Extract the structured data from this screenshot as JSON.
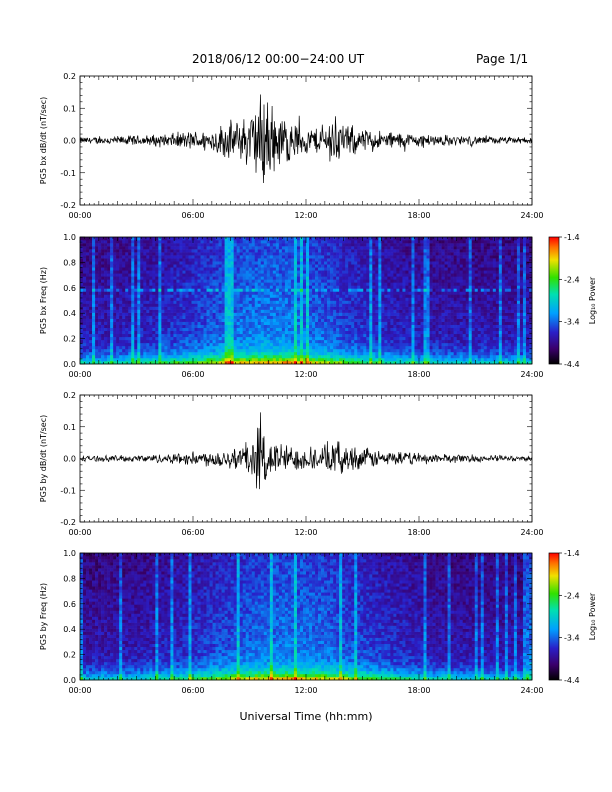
{
  "header": {
    "title": "2018/06/12  00:00−24:00 UT",
    "page_label": "Page 1/1"
  },
  "x_axis_title": "Universal Time (hh:mm)",
  "colorbar": {
    "label": "Log₁₀ Power",
    "ticks": [
      "-1.4",
      "-2.4",
      "-3.4",
      "-4.4"
    ]
  },
  "chart_data": [
    {
      "type": "line",
      "ylabel": "PG5 bx dB/dt (nT/sec)",
      "ylim": [
        -0.2,
        0.2
      ],
      "yticks": [
        -0.2,
        -0.1,
        0.0,
        0.1,
        0.2
      ],
      "ytick_labels": [
        "-0.2",
        "-0.1",
        "0.0",
        "0.1",
        "0.2"
      ],
      "xlim": [
        "00:00",
        "24:00"
      ],
      "xticks": [
        "00:00",
        "06:00",
        "12:00",
        "18:00",
        "24:00"
      ],
      "envelope": {
        "hours": [
          0,
          1,
          2,
          3,
          4,
          5,
          6,
          7,
          7.5,
          8,
          8.5,
          9,
          9.5,
          9.8,
          10,
          10.5,
          11,
          12,
          13,
          13.5,
          14,
          15,
          16,
          17,
          18,
          19,
          20,
          21,
          22,
          23,
          24
        ],
        "amplitude": [
          0.012,
          0.014,
          0.016,
          0.018,
          0.022,
          0.028,
          0.035,
          0.04,
          0.06,
          0.07,
          0.08,
          0.1,
          0.16,
          0.2,
          0.16,
          0.11,
          0.08,
          0.05,
          0.05,
          0.1,
          0.06,
          0.045,
          0.035,
          0.03,
          0.025,
          0.022,
          0.018,
          0.016,
          0.014,
          0.012,
          0.012
        ]
      }
    },
    {
      "type": "heatmap",
      "ylabel": "PG5 bx Freq (Hz)",
      "ylim": [
        0.0,
        1.0
      ],
      "yticks": [
        0.0,
        0.2,
        0.4,
        0.6,
        0.8,
        1.0
      ],
      "ytick_labels": [
        "0.0",
        "0.2",
        "0.4",
        "0.6",
        "0.8",
        "1.0"
      ],
      "xlim": [
        "00:00",
        "24:00"
      ],
      "xticks": [
        "00:00",
        "06:00",
        "12:00",
        "18:00",
        "24:00"
      ],
      "color_range": [
        -4.4,
        -1.4
      ]
    },
    {
      "type": "line",
      "ylabel": "PG5 by dB/dt (nT/sec)",
      "ylim": [
        -0.2,
        0.2
      ],
      "yticks": [
        -0.2,
        -0.1,
        0.0,
        0.1,
        0.2
      ],
      "ytick_labels": [
        "-0.2",
        "-0.1",
        "0.0",
        "0.1",
        "0.2"
      ],
      "xlim": [
        "00:00",
        "24:00"
      ],
      "xticks": [
        "00:00",
        "06:00",
        "12:00",
        "18:00",
        "24:00"
      ],
      "envelope": {
        "hours": [
          0,
          1,
          2,
          3,
          4,
          5,
          6,
          7,
          8,
          9,
          9.5,
          10,
          11,
          12,
          13,
          13.5,
          14,
          15,
          16,
          17,
          18,
          19,
          20,
          21,
          22,
          23,
          24
        ],
        "amplitude": [
          0.01,
          0.01,
          0.012,
          0.013,
          0.015,
          0.02,
          0.025,
          0.03,
          0.04,
          0.07,
          0.12,
          0.08,
          0.05,
          0.04,
          0.05,
          0.07,
          0.05,
          0.04,
          0.03,
          0.025,
          0.02,
          0.018,
          0.015,
          0.013,
          0.012,
          0.01,
          0.01
        ]
      }
    },
    {
      "type": "heatmap",
      "ylabel": "PG5 by Freq (Hz)",
      "ylim": [
        0.0,
        1.0
      ],
      "yticks": [
        0.0,
        0.2,
        0.4,
        0.6,
        0.8,
        1.0
      ],
      "ytick_labels": [
        "0.0",
        "0.2",
        "0.4",
        "0.6",
        "0.8",
        "1.0"
      ],
      "xlim": [
        "00:00",
        "24:00"
      ],
      "xticks": [
        "00:00",
        "06:00",
        "12:00",
        "18:00",
        "24:00"
      ],
      "color_range": [
        -4.4,
        -1.4
      ]
    }
  ]
}
